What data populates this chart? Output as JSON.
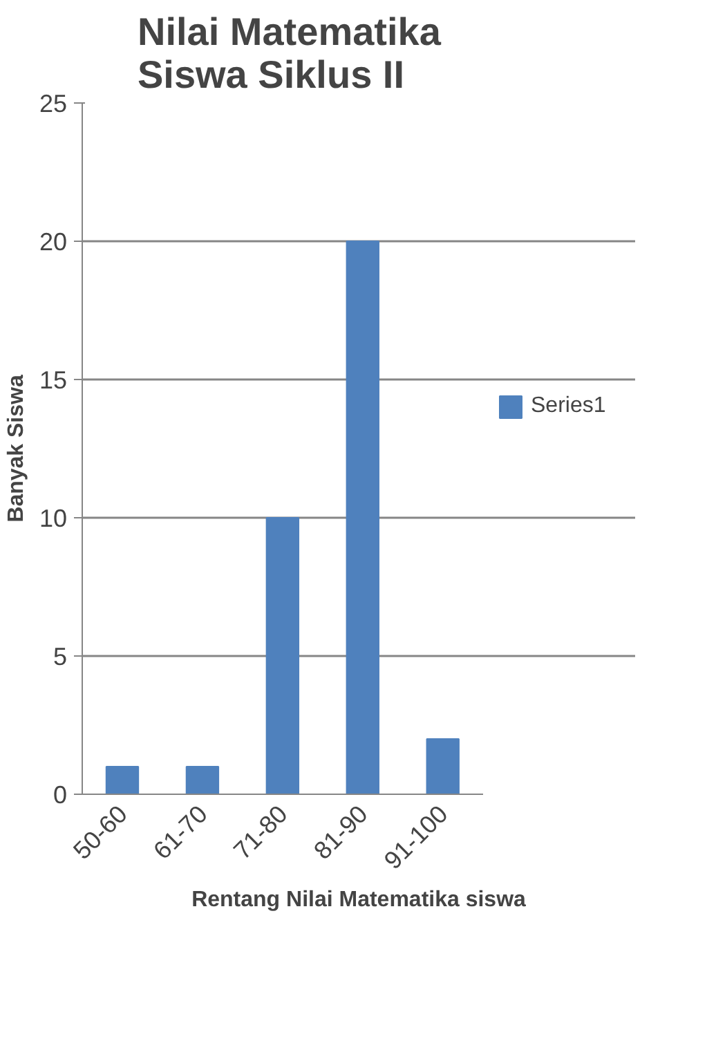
{
  "chart_data": {
    "type": "bar",
    "title": "Nilai Matematika Siswa Siklus II",
    "xlabel": "Rentang Nilai Matematika siswa",
    "ylabel": "Banyak Siswa",
    "categories": [
      "50-60",
      "61-70",
      "71-80",
      "81-90",
      "91-100"
    ],
    "series": [
      {
        "name": "Series1",
        "color": "#4f81bd",
        "values": [
          1,
          1,
          10,
          20,
          2
        ]
      }
    ],
    "ylim": [
      0,
      25
    ],
    "yticks": [
      0,
      5,
      10,
      15,
      20,
      25
    ],
    "grid": "y",
    "legend": "right"
  }
}
